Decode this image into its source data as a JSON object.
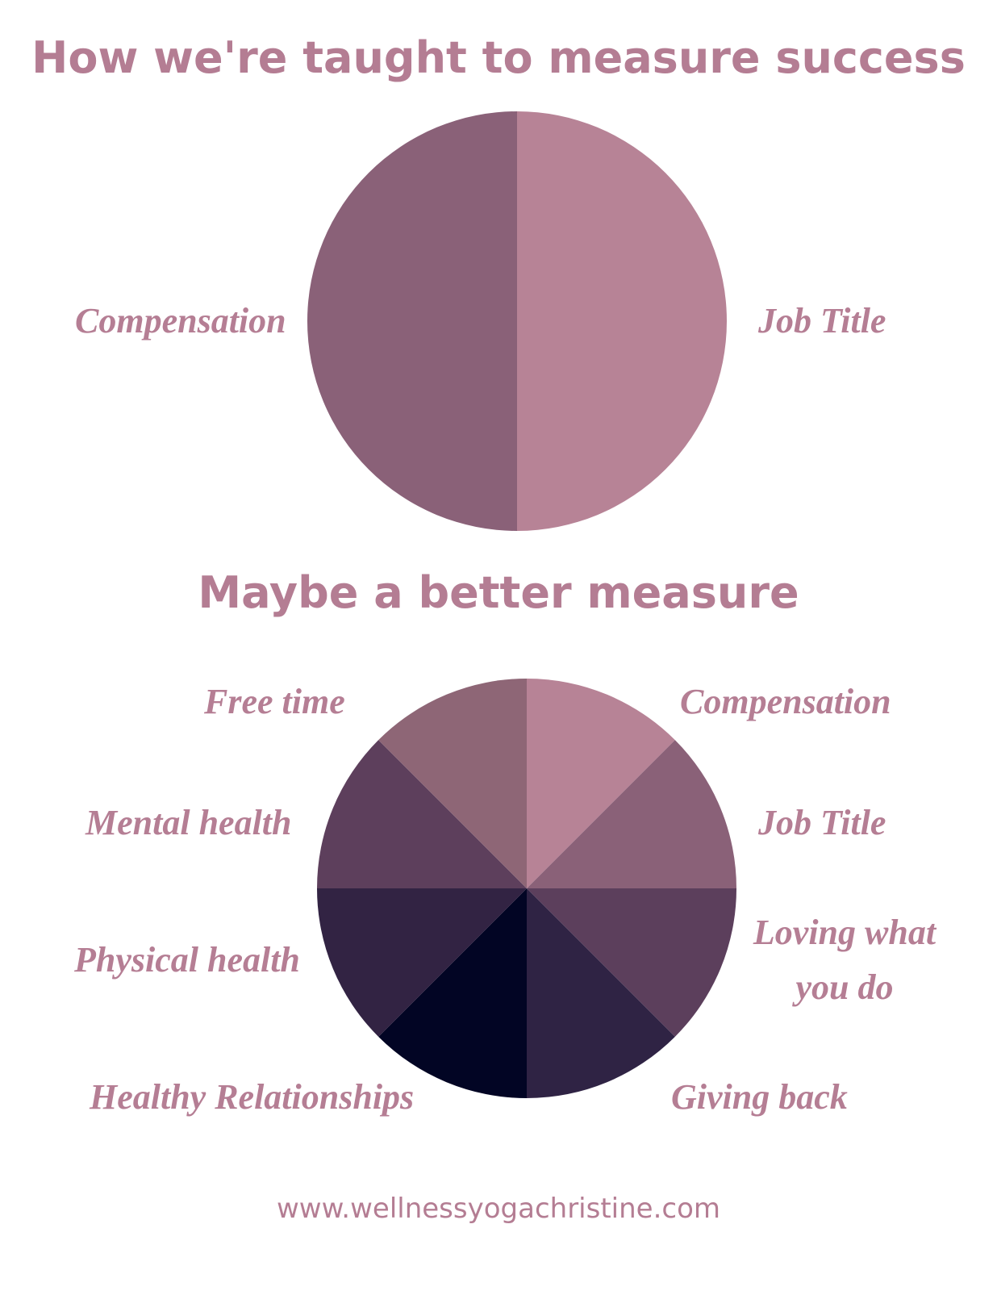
{
  "chart_data": [
    {
      "type": "pie",
      "title": "How we're taught to measure success",
      "categories": [
        "Job Title",
        "Compensation"
      ],
      "values": [
        50,
        50
      ],
      "colors": [
        "#b78396",
        "#8a6178"
      ]
    },
    {
      "type": "pie",
      "title": "Maybe a better measure",
      "categories": [
        "Compensation",
        "Job Title",
        "Loving what you do",
        "Giving back",
        "Healthy Relationships",
        "Physical health",
        "Mental health",
        "Free time"
      ],
      "values": [
        12.5,
        12.5,
        12.5,
        12.5,
        12.5,
        12.5,
        12.5,
        12.5
      ],
      "colors": [
        "#b78396",
        "#8a6178",
        "#5c3f5c",
        "#2f2344",
        "#020524",
        "#322343",
        "#5d3f5c",
        "#8e6676"
      ]
    }
  ],
  "footer": "www.wellnessyogachristine.com"
}
